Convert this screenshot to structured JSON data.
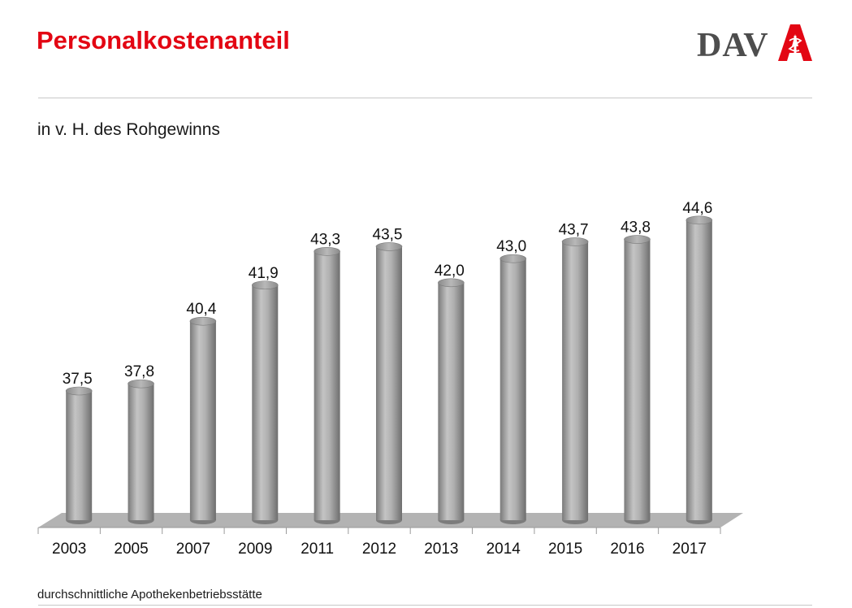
{
  "header": {
    "title": "Personalkostenanteil",
    "logo_text": "DAV"
  },
  "subtitle": "in v. H. des Rohgewinns",
  "footnote": "durchschnittliche Apothekenbetriebsstätte",
  "colors": {
    "title": "#e30613",
    "bar": "#a6a6a6",
    "floor": "#b3b3b3",
    "logo_grey": "#4d4d4d",
    "logo_red": "#e30613"
  },
  "chart_data": {
    "type": "bar",
    "categories": [
      "2003",
      "2005",
      "2007",
      "2009",
      "2011",
      "2012",
      "2013",
      "2014",
      "2015",
      "2016",
      "2017"
    ],
    "values": [
      37.5,
      37.8,
      40.4,
      41.9,
      43.3,
      43.5,
      42.0,
      43.0,
      43.7,
      43.8,
      44.6
    ],
    "value_labels": [
      "37,5",
      "37,8",
      "40,4",
      "41,9",
      "43,3",
      "43,5",
      "42,0",
      "43,0",
      "43,7",
      "43,8",
      "44,6"
    ],
    "title": "",
    "xlabel": "",
    "ylabel": "",
    "grid": false,
    "style": "3d-cylinder"
  }
}
